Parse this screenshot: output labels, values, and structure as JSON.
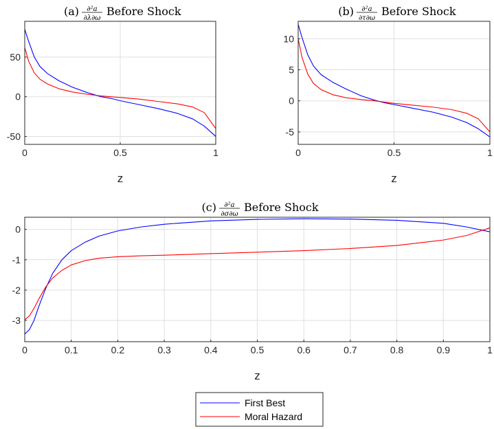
{
  "chart_data": [
    {
      "type": "line",
      "title": {
        "label": "(a)",
        "num": "∂²a",
        "den": "∂λ∂ω",
        "suffix": "Before Shock"
      },
      "xlabel": "z",
      "ylabel": "",
      "xlim": [
        0,
        1
      ],
      "ylim": [
        -60,
        95
      ],
      "xticks": [
        0,
        0.5,
        1
      ],
      "xticklabels": [
        "0",
        "0.5",
        "1"
      ],
      "yticks": [
        -50,
        0,
        50
      ],
      "yticklabels": [
        "-50",
        "0",
        "50"
      ],
      "grid": true,
      "series": [
        {
          "name": "First Best",
          "color": "#0000ff",
          "x": [
            0,
            0.02,
            0.05,
            0.08,
            0.12,
            0.18,
            0.25,
            0.33,
            0.4,
            0.45,
            0.5,
            0.6,
            0.7,
            0.8,
            0.88,
            0.94,
            1.0
          ],
          "y": [
            85,
            70,
            50,
            38,
            29,
            20,
            12,
            5,
            0,
            -2,
            -5,
            -10,
            -15,
            -21,
            -28,
            -37,
            -50
          ]
        },
        {
          "name": "Moral Hazard",
          "color": "#ff0000",
          "x": [
            0,
            0.02,
            0.05,
            0.08,
            0.12,
            0.18,
            0.25,
            0.33,
            0.4,
            0.45,
            0.5,
            0.6,
            0.7,
            0.8,
            0.88,
            0.94,
            1.0
          ],
          "y": [
            62,
            45,
            30,
            22,
            16,
            10,
            6,
            3,
            1,
            0,
            -1,
            -3,
            -6,
            -9,
            -13,
            -20,
            -40
          ]
        }
      ]
    },
    {
      "type": "line",
      "title": {
        "label": "(b)",
        "num": "∂²a",
        "den": "∂τ∂ω",
        "suffix": "Before Shock"
      },
      "xlabel": "z",
      "ylabel": "",
      "xlim": [
        0,
        1
      ],
      "ylim": [
        -7,
        12.8
      ],
      "xticks": [
        0,
        0.5,
        1
      ],
      "xticklabels": [
        "0",
        "0.5",
        "1"
      ],
      "yticks": [
        -5,
        0,
        5,
        10
      ],
      "yticklabels": [
        "-5",
        "0",
        "5",
        "10"
      ],
      "grid": true,
      "series": [
        {
          "name": "First Best",
          "color": "#0000ff",
          "x": [
            0,
            0.02,
            0.05,
            0.08,
            0.12,
            0.18,
            0.25,
            0.33,
            0.4,
            0.45,
            0.5,
            0.6,
            0.7,
            0.8,
            0.88,
            0.94,
            1.0
          ],
          "y": [
            12.3,
            10.2,
            7.4,
            5.6,
            4.2,
            3.0,
            1.9,
            0.8,
            0.1,
            -0.3,
            -0.6,
            -1.2,
            -1.8,
            -2.6,
            -3.5,
            -4.5,
            -5.8
          ]
        },
        {
          "name": "Moral Hazard",
          "color": "#ff0000",
          "x": [
            0,
            0.02,
            0.05,
            0.08,
            0.12,
            0.18,
            0.25,
            0.33,
            0.4,
            0.45,
            0.5,
            0.6,
            0.7,
            0.8,
            0.88,
            0.94,
            1.0
          ],
          "y": [
            10.0,
            7.0,
            4.3,
            2.8,
            1.8,
            1.0,
            0.5,
            0.2,
            0.0,
            -0.2,
            -0.4,
            -0.7,
            -1.0,
            -1.4,
            -2.0,
            -2.9,
            -5.0
          ]
        }
      ]
    },
    {
      "type": "line",
      "title": {
        "label": "(c)",
        "num": "∂²a",
        "den": "∂σ∂ω",
        "suffix": "Before Shock"
      },
      "xlabel": "z",
      "ylabel": "",
      "xlim": [
        0,
        1
      ],
      "ylim": [
        -3.7,
        0.4
      ],
      "xticks": [
        0,
        0.1,
        0.2,
        0.3,
        0.4,
        0.5,
        0.6,
        0.7,
        0.8,
        0.9,
        1
      ],
      "xticklabels": [
        "0",
        "0.1",
        "0.2",
        "0.3",
        "0.4",
        "0.5",
        "0.6",
        "0.7",
        "0.8",
        "0.9",
        "1"
      ],
      "yticks": [
        -3,
        -2,
        -1,
        0
      ],
      "yticklabels": [
        "-3",
        "-2",
        "-1",
        "0"
      ],
      "grid": true,
      "series": [
        {
          "name": "First Best",
          "color": "#0000ff",
          "x": [
            0,
            0.01,
            0.02,
            0.03,
            0.045,
            0.06,
            0.08,
            0.1,
            0.13,
            0.16,
            0.2,
            0.25,
            0.3,
            0.4,
            0.5,
            0.6,
            0.7,
            0.8,
            0.9,
            0.95,
            1.0
          ],
          "y": [
            -3.45,
            -3.3,
            -3.0,
            -2.55,
            -1.95,
            -1.45,
            -1.0,
            -0.7,
            -0.42,
            -0.22,
            -0.05,
            0.08,
            0.17,
            0.28,
            0.33,
            0.35,
            0.34,
            0.3,
            0.2,
            0.08,
            -0.08
          ]
        },
        {
          "name": "Moral Hazard",
          "color": "#ff0000",
          "x": [
            0,
            0.01,
            0.02,
            0.03,
            0.045,
            0.06,
            0.08,
            0.1,
            0.13,
            0.16,
            0.2,
            0.25,
            0.3,
            0.4,
            0.5,
            0.6,
            0.7,
            0.8,
            0.9,
            0.95,
            1.0
          ],
          "y": [
            -2.98,
            -2.85,
            -2.6,
            -2.3,
            -1.9,
            -1.6,
            -1.35,
            -1.17,
            -1.03,
            -0.95,
            -0.9,
            -0.87,
            -0.85,
            -0.8,
            -0.75,
            -0.7,
            -0.63,
            -0.53,
            -0.35,
            -0.2,
            0.05
          ]
        }
      ]
    }
  ]
}
